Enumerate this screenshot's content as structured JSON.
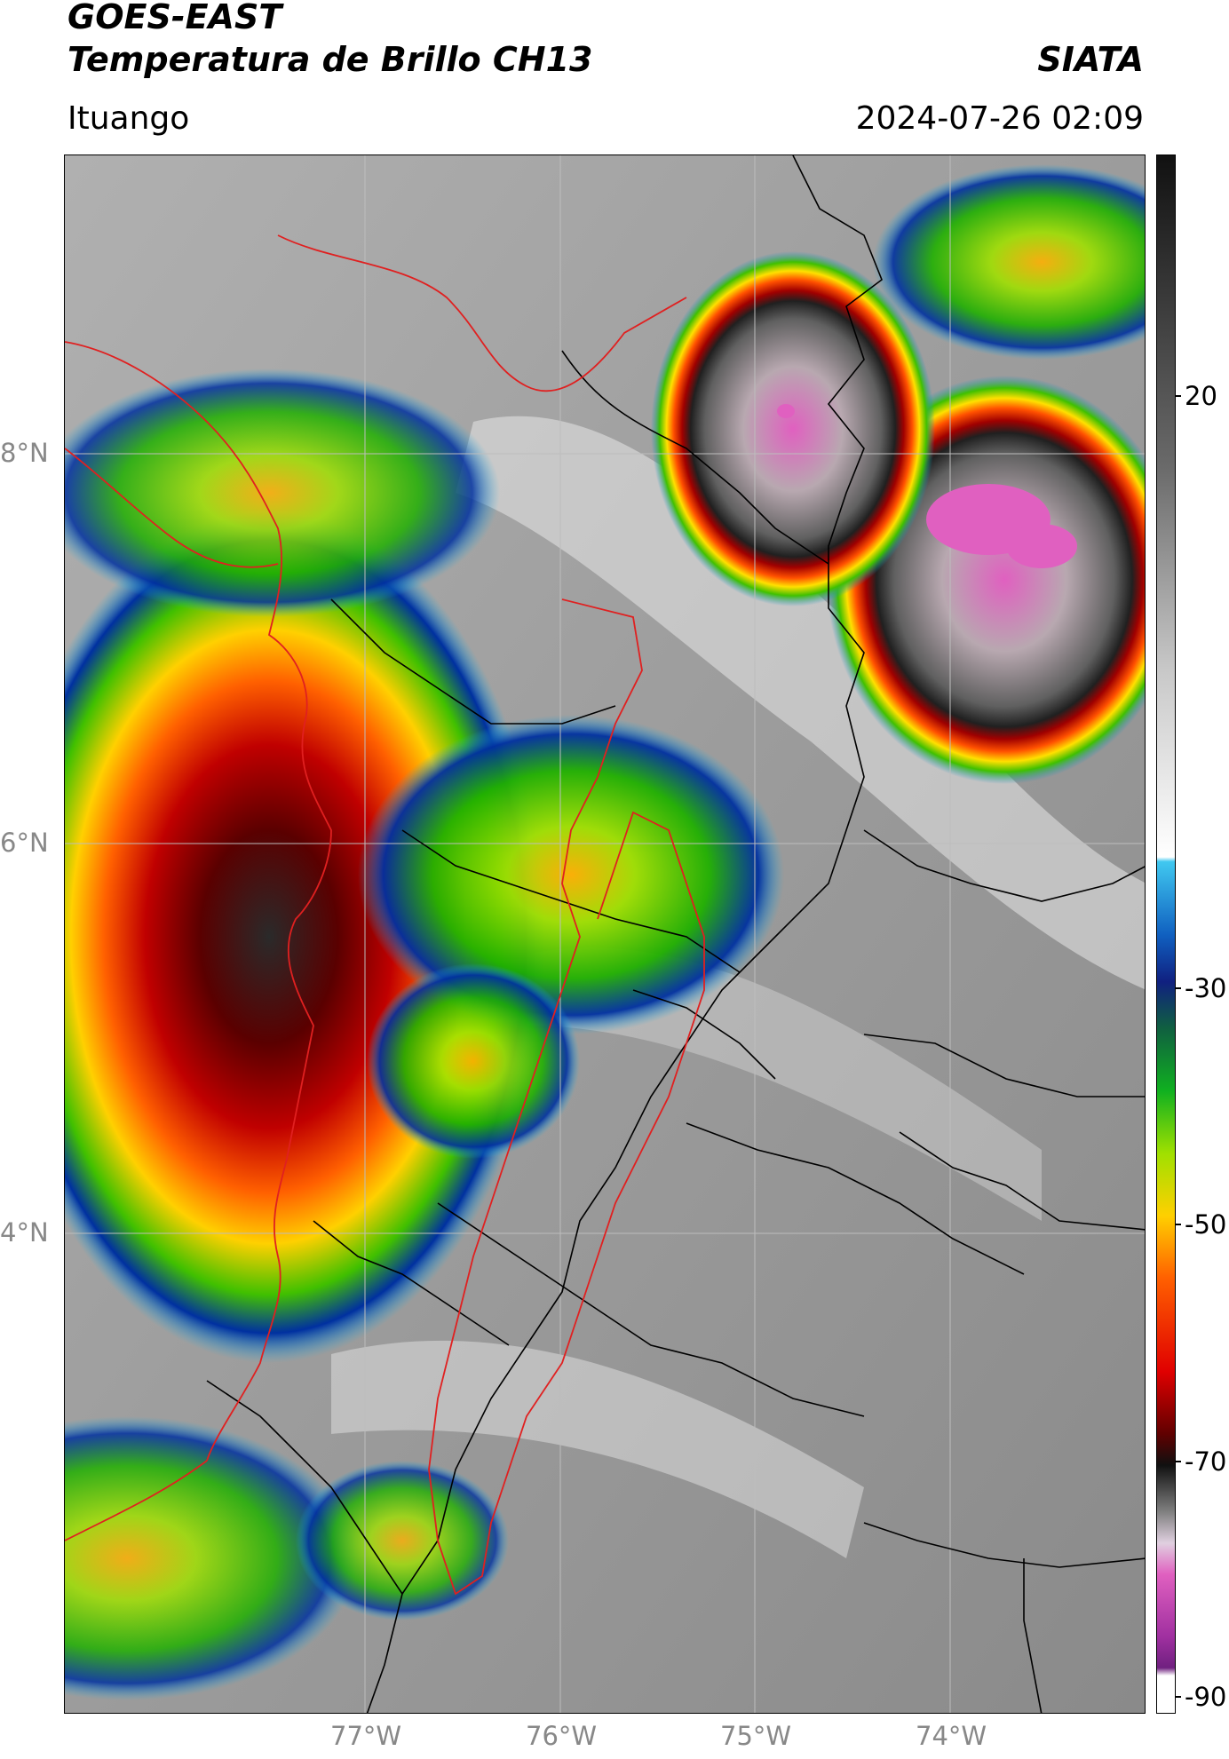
{
  "header": {
    "satellite": "GOES-EAST",
    "product": "Temperatura de Brillo CH13",
    "org": "SIATA",
    "location": "Ituango",
    "datetime": "2024-07-26 02:09"
  },
  "map": {
    "lat_labels": [
      "8°N",
      "6°N",
      "4°N"
    ],
    "lon_labels": [
      "77°W",
      "76°W",
      "75°W",
      "74°W"
    ],
    "colors": {
      "background": "#9a9a9a",
      "borders_national": "#000000",
      "borders_department": "#e02020"
    }
  },
  "colorbar": {
    "ticks": [
      "20",
      "-30",
      "-50",
      "-70",
      "-90"
    ],
    "range": [
      -90,
      30
    ]
  }
}
